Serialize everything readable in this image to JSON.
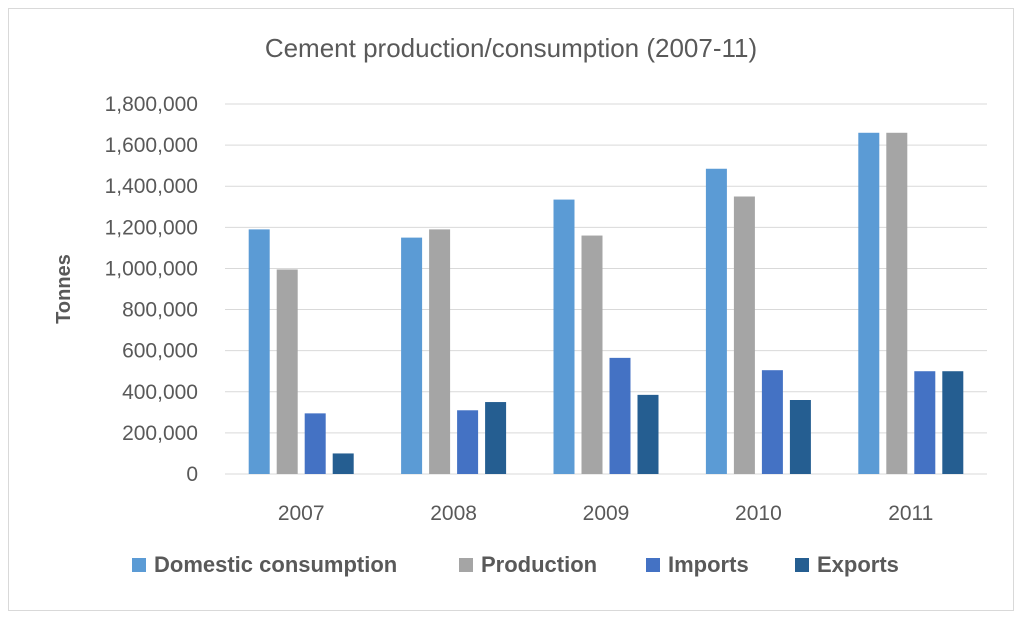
{
  "chart_data": {
    "type": "bar",
    "title": "Cement production/consumption (2007-11)",
    "xlabel": "",
    "ylabel": "Tonnes",
    "ylim": [
      0,
      1800000
    ],
    "yticks": [
      0,
      200000,
      400000,
      600000,
      800000,
      1000000,
      1200000,
      1400000,
      1600000,
      1800000
    ],
    "ytick_labels": [
      "0",
      "200,000",
      "400,000",
      "600,000",
      "800,000",
      "1,000,000",
      "1,200,000",
      "1,400,000",
      "1,600,000",
      "1,800,000"
    ],
    "categories": [
      "2007",
      "2008",
      "2009",
      "2010",
      "2011"
    ],
    "grid": true,
    "legend_position": "bottom",
    "series": [
      {
        "name": "Domestic consumption",
        "color": "#5b9bd5",
        "values": [
          1190000,
          1150000,
          1335000,
          1485000,
          1660000
        ]
      },
      {
        "name": "Production",
        "color": "#a5a5a5",
        "values": [
          995000,
          1190000,
          1160000,
          1350000,
          1660000
        ]
      },
      {
        "name": "Imports",
        "color": "#4472c4",
        "values": [
          295000,
          310000,
          565000,
          505000,
          500000
        ]
      },
      {
        "name": "Exports",
        "color": "#255e91",
        "values": [
          100000,
          350000,
          385000,
          360000,
          500000
        ]
      }
    ]
  }
}
